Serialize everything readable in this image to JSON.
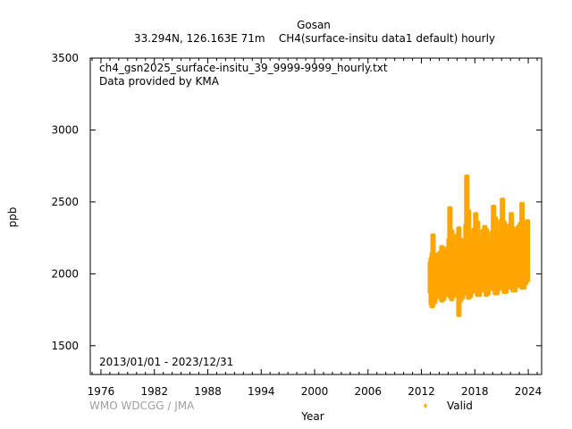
{
  "header": {
    "station": "Gosan",
    "subtitle": "33.294N, 126.163E 71m    CH4(surface-insitu data1 default) hourly"
  },
  "annotations": {
    "file": "ch4_gsn2025_surface-insitu_39_9999-9999_hourly.txt",
    "provider": "Data provided by KMA",
    "period": "2013/01/01 - 2023/12/31"
  },
  "credit": "WMO WDCGG / JMA",
  "colors": {
    "series": "#ffa500",
    "axis": "#000000",
    "credit": "#a0a0a0"
  },
  "chart_data": {
    "type": "scatter",
    "xlabel": "Year",
    "ylabel": "ppb",
    "xlim": [
      1974.8,
      2025.5
    ],
    "ylim": [
      1300,
      3500
    ],
    "xticks": [
      1976,
      1982,
      1988,
      1994,
      2000,
      2006,
      2012,
      2018,
      2024
    ],
    "yticks": [
      1500,
      2000,
      2500,
      3000,
      3500
    ],
    "grid": false,
    "legend": {
      "position": "bottom-right",
      "entries": [
        "Valid"
      ]
    },
    "series": [
      {
        "name": "Valid",
        "color": "#ffa500",
        "summary_columns": [
          "year",
          "min_ppb",
          "max_ppb"
        ],
        "summary": [
          [
            2013.0,
            1860,
            2090
          ],
          [
            2013.1,
            1780,
            2120
          ],
          [
            2013.2,
            1760,
            2150
          ],
          [
            2013.3,
            1770,
            2280
          ],
          [
            2013.5,
            1790,
            2150
          ],
          [
            2013.7,
            1830,
            2100
          ],
          [
            2013.9,
            1840,
            2130
          ],
          [
            2014.1,
            1820,
            2160
          ],
          [
            2014.3,
            1800,
            2200
          ],
          [
            2014.5,
            1810,
            2150
          ],
          [
            2014.7,
            1840,
            2120
          ],
          [
            2014.9,
            1860,
            2190
          ],
          [
            2015.1,
            1840,
            2250
          ],
          [
            2015.2,
            1830,
            2470
          ],
          [
            2015.4,
            1810,
            2310
          ],
          [
            2015.6,
            1830,
            2180
          ],
          [
            2015.8,
            1860,
            2160
          ],
          [
            2016.0,
            1870,
            2280
          ],
          [
            2016.2,
            1700,
            2330
          ],
          [
            2016.4,
            1800,
            2250
          ],
          [
            2016.6,
            1820,
            2200
          ],
          [
            2016.8,
            1860,
            2240
          ],
          [
            2017.0,
            1880,
            2350
          ],
          [
            2017.1,
            1850,
            2690
          ],
          [
            2017.3,
            1820,
            2450
          ],
          [
            2017.5,
            1830,
            2270
          ],
          [
            2017.7,
            1860,
            2220
          ],
          [
            2017.9,
            1880,
            2320
          ],
          [
            2018.1,
            1870,
            2430
          ],
          [
            2018.3,
            1840,
            2370
          ],
          [
            2018.5,
            1840,
            2230
          ],
          [
            2018.7,
            1870,
            2220
          ],
          [
            2018.9,
            1890,
            2310
          ],
          [
            2019.1,
            1870,
            2340
          ],
          [
            2019.3,
            1840,
            2320
          ],
          [
            2019.5,
            1850,
            2250
          ],
          [
            2019.7,
            1880,
            2230
          ],
          [
            2019.9,
            1890,
            2300
          ],
          [
            2020.1,
            1880,
            2480
          ],
          [
            2020.3,
            1850,
            2400
          ],
          [
            2020.5,
            1850,
            2290
          ],
          [
            2020.7,
            1880,
            2260
          ],
          [
            2020.9,
            1900,
            2380
          ],
          [
            2021.1,
            1890,
            2530
          ],
          [
            2021.3,
            1860,
            2370
          ],
          [
            2021.5,
            1860,
            2270
          ],
          [
            2021.7,
            1890,
            2260
          ],
          [
            2021.9,
            1910,
            2350
          ],
          [
            2022.1,
            1890,
            2430
          ],
          [
            2022.3,
            1870,
            2330
          ],
          [
            2022.5,
            1870,
            2280
          ],
          [
            2022.7,
            1900,
            2270
          ],
          [
            2022.9,
            1920,
            2340
          ],
          [
            2023.1,
            1910,
            2360
          ],
          [
            2023.3,
            1890,
            2500
          ],
          [
            2023.5,
            1890,
            2320
          ],
          [
            2023.7,
            1920,
            2290
          ],
          [
            2023.9,
            1940,
            2380
          ]
        ]
      }
    ]
  }
}
